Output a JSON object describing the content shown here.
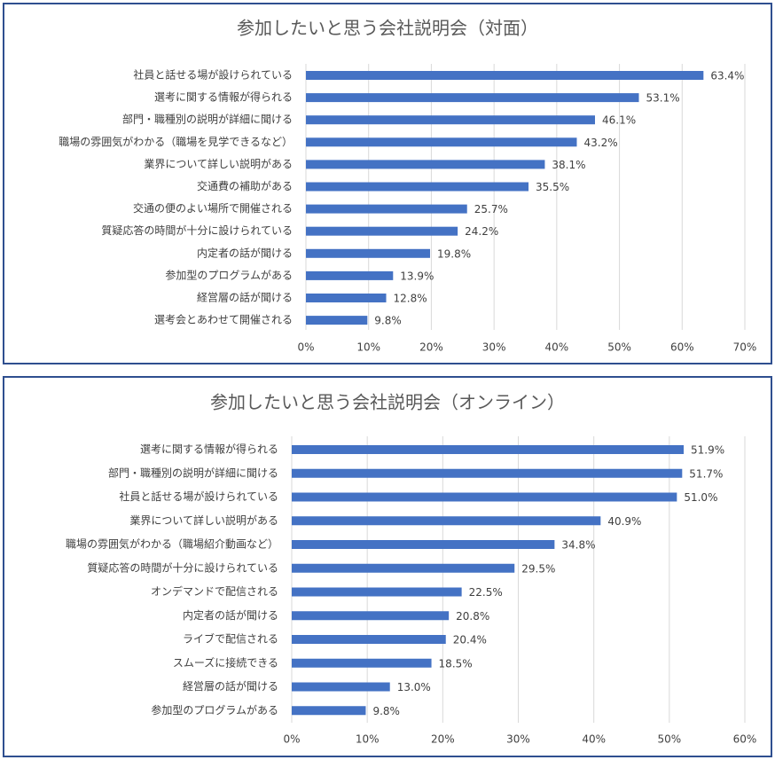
{
  "chart_data": [
    {
      "type": "barh",
      "title": "参加したいと思う会社説明会（対面）",
      "categories": [
        "社員と話せる場が設けられている",
        "選考に関する情報が得られる",
        "部門・職種別の説明が詳細に聞ける",
        "職場の雰囲気がわかる（職場を見学できるなど）",
        "業界について詳しい説明がある",
        "交通費の補助がある",
        "交通の便のよい場所で開催される",
        "質疑応答の時間が十分に設けられている",
        "内定者の話が聞ける",
        "参加型のプログラムがある",
        "経営層の話が聞ける",
        "選考会とあわせて開催される"
      ],
      "values": [
        63.4,
        53.1,
        46.1,
        43.2,
        38.1,
        35.5,
        25.7,
        24.2,
        19.8,
        13.9,
        12.8,
        9.8
      ],
      "value_labels": [
        "63.4%",
        "53.1%",
        "46.1%",
        "43.2%",
        "38.1%",
        "35.5%",
        "25.7%",
        "24.2%",
        "19.8%",
        "13.9%",
        "12.8%",
        "9.8%"
      ],
      "color": "#4472c4",
      "xlim": [
        0,
        70
      ],
      "xticks": [
        {
          "value": 0,
          "label": "0%"
        },
        {
          "value": 10,
          "label": "10%"
        },
        {
          "value": 20,
          "label": "20%"
        },
        {
          "value": 30,
          "label": "30%"
        },
        {
          "value": 40,
          "label": "40%"
        },
        {
          "value": 50,
          "label": "50%"
        },
        {
          "value": 60,
          "label": "60%"
        },
        {
          "value": 70,
          "label": "70%"
        }
      ],
      "grid": true
    },
    {
      "type": "barh",
      "title": "参加したいと思う会社説明会（オンライン）",
      "categories": [
        "選考に関する情報が得られる",
        "部門・職種別の説明が詳細に聞ける",
        "社員と話せる場が設けられている",
        "業界について詳しい説明がある",
        "職場の雰囲気がわかる（職場紹介動画など）",
        "質疑応答の時間が十分に設けられている",
        "オンデマンドで配信される",
        "内定者の話が聞ける",
        "ライブで配信される",
        "スムーズに接続できる",
        "経営層の話が聞ける",
        "参加型のプログラムがある"
      ],
      "values": [
        51.9,
        51.7,
        51.0,
        40.9,
        34.8,
        29.5,
        22.5,
        20.8,
        20.4,
        18.5,
        13.0,
        9.8
      ],
      "value_labels": [
        "51.9%",
        "51.7%",
        "51.0%",
        "40.9%",
        "34.8%",
        "29.5%",
        "22.5%",
        "20.8%",
        "20.4%",
        "18.5%",
        "13.0%",
        "9.8%"
      ],
      "color": "#4472c4",
      "xlim": [
        0,
        60
      ],
      "xticks": [
        {
          "value": 0,
          "label": "0%"
        },
        {
          "value": 10,
          "label": "10%"
        },
        {
          "value": 20,
          "label": "20%"
        },
        {
          "value": 30,
          "label": "30%"
        },
        {
          "value": 40,
          "label": "40%"
        },
        {
          "value": 50,
          "label": "50%"
        },
        {
          "value": 60,
          "label": "60%"
        }
      ],
      "grid": true
    }
  ]
}
